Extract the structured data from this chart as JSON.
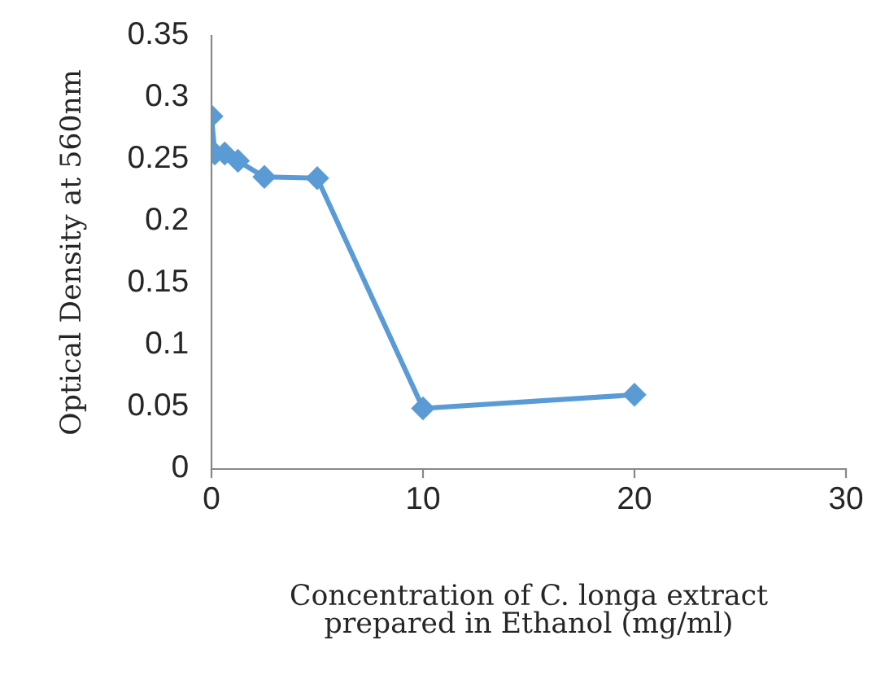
{
  "chart_data": {
    "type": "line",
    "xlabel": "Concentration of C. longa extract\nprepared in Ethanol (mg/ml)",
    "ylabel": "Optical Density at 560nm",
    "x": [
      0,
      0.156,
      0.625,
      1.25,
      2.5,
      5,
      10,
      20
    ],
    "series": [
      {
        "color": "#5b9bd5",
        "values": [
          0.285,
          0.255,
          0.255,
          0.249,
          0.236,
          0.235,
          0.049,
          0.06
        ]
      }
    ],
    "xlim": [
      0,
      30
    ],
    "xticks": [
      0,
      10,
      20,
      30
    ],
    "ylim": [
      0,
      0.35
    ],
    "yticks": [
      0,
      0.05,
      0.1,
      0.15,
      0.2,
      0.25,
      0.3,
      0.35
    ],
    "marker": "diamond",
    "line_style": "solid",
    "grid": false,
    "legend": false
  }
}
